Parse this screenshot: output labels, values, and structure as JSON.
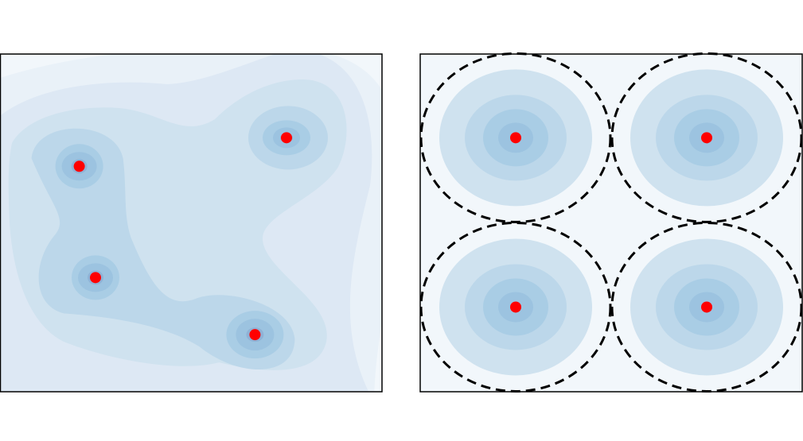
{
  "colors": {
    "background": "#ffffff",
    "frame": "#000000",
    "points": "#ff0000",
    "boundary": "#000000",
    "contour_levels": [
      "#f2f7fb",
      "#e9f1f8",
      "#dde8f4",
      "#cfe2ef",
      "#bcd7ea",
      "#a9cde5",
      "#9cc3e0",
      "#8fb2d6"
    ]
  },
  "chart_data": [
    {
      "type": "contour",
      "panel": "left",
      "grid": false,
      "xlim": [
        0,
        4
      ],
      "ylim": [
        0,
        3.55
      ],
      "points": [
        {
          "x": 0.83,
          "y": 2.37
        },
        {
          "x": 1.0,
          "y": 1.2
        },
        {
          "x": 3.0,
          "y": 2.67
        },
        {
          "x": 2.67,
          "y": 0.6
        }
      ]
    },
    {
      "type": "contour",
      "panel": "right",
      "grid": false,
      "xlim": [
        0,
        4
      ],
      "ylim": [
        0,
        3.55
      ],
      "boundary_style": "dashed",
      "points": [
        {
          "x": 1.0,
          "y": 2.67
        },
        {
          "x": 3.0,
          "y": 2.67
        },
        {
          "x": 1.0,
          "y": 0.89
        },
        {
          "x": 3.0,
          "y": 0.89
        }
      ]
    }
  ]
}
